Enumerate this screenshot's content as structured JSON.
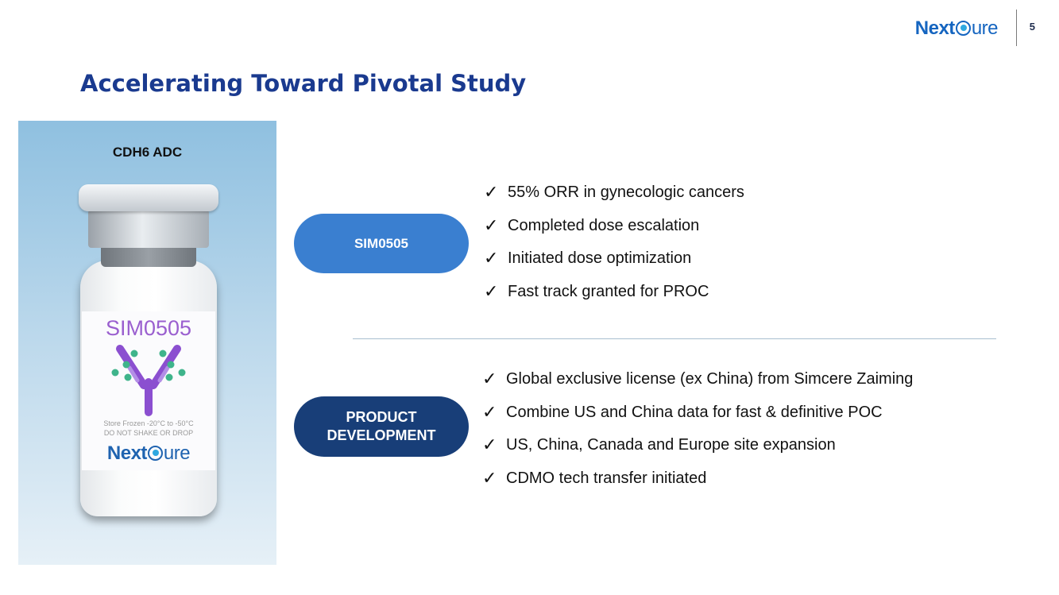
{
  "header": {
    "logo_next": "Next",
    "logo_ure": "ure",
    "page_number": "5"
  },
  "title": "Accelerating Toward Pivotal Study",
  "vial_panel": {
    "caption": "CDH6 ADC",
    "label_title": "SIM0505",
    "storage_line1": "Store Frozen -20°C to -50°C",
    "storage_line2": "DO NOT SHAKE OR DROP",
    "logo_next": "Next",
    "logo_ure": "ure"
  },
  "sections": {
    "sim0505": {
      "pill": "SIM0505",
      "items": [
        "55% ORR in gynecologic cancers",
        "Completed dose escalation",
        "Initiated dose optimization",
        "Fast track granted for PROC"
      ]
    },
    "product_development": {
      "pill_line1": "PRODUCT",
      "pill_line2": "DEVELOPMENT",
      "items": [
        "Global exclusive license (ex China) from Simcere Zaiming",
        "Combine US and China data for fast & definitive POC",
        "US, China, Canada and Europe site expansion",
        "CDMO tech transfer initiated"
      ]
    }
  },
  "colors": {
    "title": "#1a3a8f",
    "pill_sim": "#3a7fd0",
    "pill_prod": "#183e78",
    "brand": "#1565c0"
  },
  "icons": {
    "check": "check-icon",
    "antibody": "antibody-icon"
  }
}
